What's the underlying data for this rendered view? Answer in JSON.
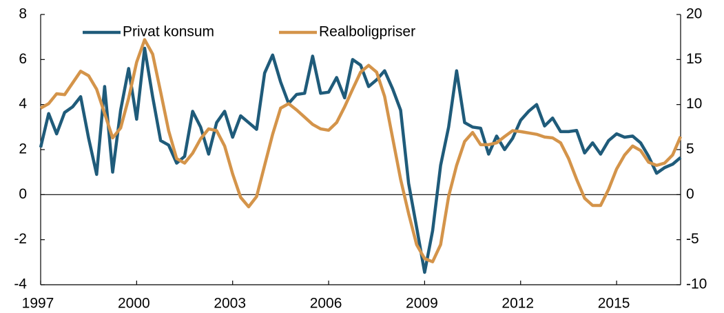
{
  "chart_data": {
    "type": "line",
    "x": [
      1997,
      1997.25,
      1997.5,
      1997.75,
      1998,
      1998.25,
      1998.5,
      1998.75,
      1999,
      1999.25,
      1999.5,
      1999.75,
      2000,
      2000.25,
      2000.5,
      2000.75,
      2001,
      2001.25,
      2001.5,
      2001.75,
      2002,
      2002.25,
      2002.5,
      2002.75,
      2003,
      2003.25,
      2003.5,
      2003.75,
      2004,
      2004.25,
      2004.5,
      2004.75,
      2005,
      2005.25,
      2005.5,
      2005.75,
      2006,
      2006.25,
      2006.5,
      2006.75,
      2007,
      2007.25,
      2007.5,
      2007.75,
      2008,
      2008.25,
      2008.5,
      2008.75,
      2009,
      2009.25,
      2009.5,
      2009.75,
      2010,
      2010.25,
      2010.5,
      2010.75,
      2011,
      2011.25,
      2011.5,
      2011.75,
      2012,
      2012.25,
      2012.5,
      2012.75,
      2013,
      2013.25,
      2013.5,
      2013.75,
      2014,
      2014.25,
      2014.5,
      2014.75,
      2015,
      2015.25,
      2015.5,
      2015.75,
      2016,
      2016.25,
      2016.5,
      2016.75,
      2017
    ],
    "series": [
      {
        "name": "Privat konsum",
        "color": "#1f5b7a",
        "values": [
          2.1,
          3.6,
          2.7,
          3.65,
          3.9,
          4.35,
          2.5,
          0.9,
          4.8,
          1.0,
          3.75,
          5.6,
          3.35,
          6.5,
          4.35,
          2.4,
          2.2,
          1.4,
          1.7,
          3.7,
          3.0,
          1.8,
          3.2,
          3.7,
          2.55,
          3.5,
          3.2,
          2.9,
          5.4,
          6.2,
          5.0,
          4.05,
          4.45,
          4.5,
          6.15,
          4.5,
          4.55,
          5.2,
          4.3,
          6.0,
          5.75,
          4.8,
          5.1,
          5.5,
          4.7,
          3.75,
          0.5,
          -1.45,
          -3.45,
          -1.6,
          1.3,
          3.0,
          5.5,
          3.2,
          3.0,
          2.95,
          1.8,
          2.6,
          2.0,
          2.5,
          3.3,
          3.7,
          4.0,
          3.05,
          3.4,
          2.8,
          2.8,
          2.85,
          1.85,
          2.3,
          1.8,
          2.4,
          2.7,
          2.55,
          2.6,
          2.3,
          1.7,
          0.95,
          1.2,
          1.35,
          1.65
        ]
      },
      {
        "name": "Realboligpriser",
        "color": "#d4944a",
        "axis": "y2",
        "values": [
          9.6,
          10.1,
          11.2,
          11.1,
          12.4,
          13.7,
          13.2,
          11.7,
          9.0,
          6.3,
          7.4,
          10.7,
          14.7,
          17.2,
          15.6,
          11.4,
          7.1,
          4.0,
          3.5,
          4.6,
          6.2,
          7.3,
          7.1,
          5.4,
          2.3,
          -0.3,
          -1.35,
          -0.2,
          3.25,
          6.7,
          9.6,
          10.1,
          9.4,
          8.6,
          7.8,
          7.3,
          7.15,
          8.0,
          9.75,
          11.7,
          13.6,
          14.35,
          13.6,
          10.9,
          6.3,
          1.7,
          -2.1,
          -5.55,
          -7.1,
          -7.45,
          -5.55,
          -0.2,
          3.25,
          5.9,
          6.9,
          5.55,
          5.55,
          5.75,
          6.45,
          7.1,
          7.0,
          6.85,
          6.7,
          6.4,
          6.3,
          5.75,
          4.0,
          1.7,
          -0.4,
          -1.2,
          -1.2,
          0.6,
          2.85,
          4.4,
          5.4,
          4.9,
          3.6,
          3.25,
          3.5,
          4.4,
          6.45
        ]
      }
    ],
    "xlim": [
      1997,
      2017
    ],
    "xticks": [
      1997,
      2000,
      2003,
      2006,
      2009,
      2012,
      2015
    ],
    "ylim": [
      -4,
      8
    ],
    "yticks": [
      -4,
      -2,
      0,
      2,
      4,
      6,
      8
    ],
    "y2lim": [
      -10,
      20
    ],
    "y2ticks": [
      -10,
      -5,
      0,
      5,
      10,
      15,
      20
    ],
    "legend": "top"
  }
}
